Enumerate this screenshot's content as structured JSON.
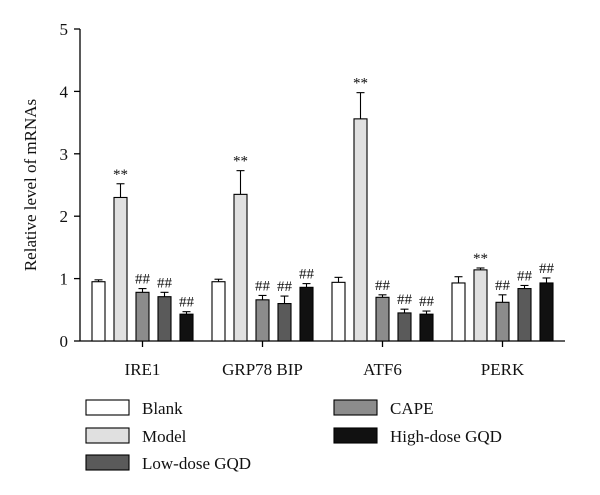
{
  "chart_data": {
    "type": "bar",
    "title": "",
    "xlabel": "",
    "ylabel": "Relative level of mRNAs",
    "ylim": [
      0,
      5
    ],
    "yticks": [
      "0",
      "1",
      "2",
      "3",
      "4",
      "5"
    ],
    "categories": [
      "IRE1",
      "GRP78 BIP",
      "ATF6",
      "PERK"
    ],
    "series": [
      {
        "name": "Blank",
        "color": "#ffffff",
        "values": [
          0.95,
          0.95,
          0.94,
          0.93
        ],
        "errors": [
          0.03,
          0.04,
          0.08,
          0.1
        ],
        "annotations": [
          "",
          "",
          "",
          ""
        ]
      },
      {
        "name": "Model",
        "color": "#e0e0e0",
        "values": [
          2.3,
          2.35,
          3.56,
          1.14
        ],
        "errors": [
          0.22,
          0.38,
          0.42,
          0.03
        ],
        "annotations": [
          "**",
          "**",
          "**",
          "**"
        ]
      },
      {
        "name": "CAPE",
        "color": "#8c8c8c",
        "values": [
          0.78,
          0.66,
          0.7,
          0.62
        ],
        "errors": [
          0.06,
          0.07,
          0.04,
          0.12
        ],
        "annotations": [
          "##",
          "##",
          "##",
          "##"
        ]
      },
      {
        "name": "Low-dose GQD",
        "color": "#5a5a5a",
        "values": [
          0.71,
          0.6,
          0.45,
          0.84
        ],
        "errors": [
          0.07,
          0.12,
          0.06,
          0.05
        ],
        "annotations": [
          "##",
          "##",
          "##",
          "##"
        ]
      },
      {
        "name": "High-dose GQD",
        "color": "#111111",
        "values": [
          0.43,
          0.86,
          0.43,
          0.93
        ],
        "errors": [
          0.04,
          0.06,
          0.05,
          0.08
        ],
        "annotations": [
          "##",
          "##",
          "##",
          "##"
        ]
      }
    ],
    "legend": {
      "placement": "bottom",
      "order": [
        "Blank",
        "Model",
        "Low-dose GQD",
        "CAPE",
        "High-dose GQD"
      ]
    },
    "grid": false
  }
}
